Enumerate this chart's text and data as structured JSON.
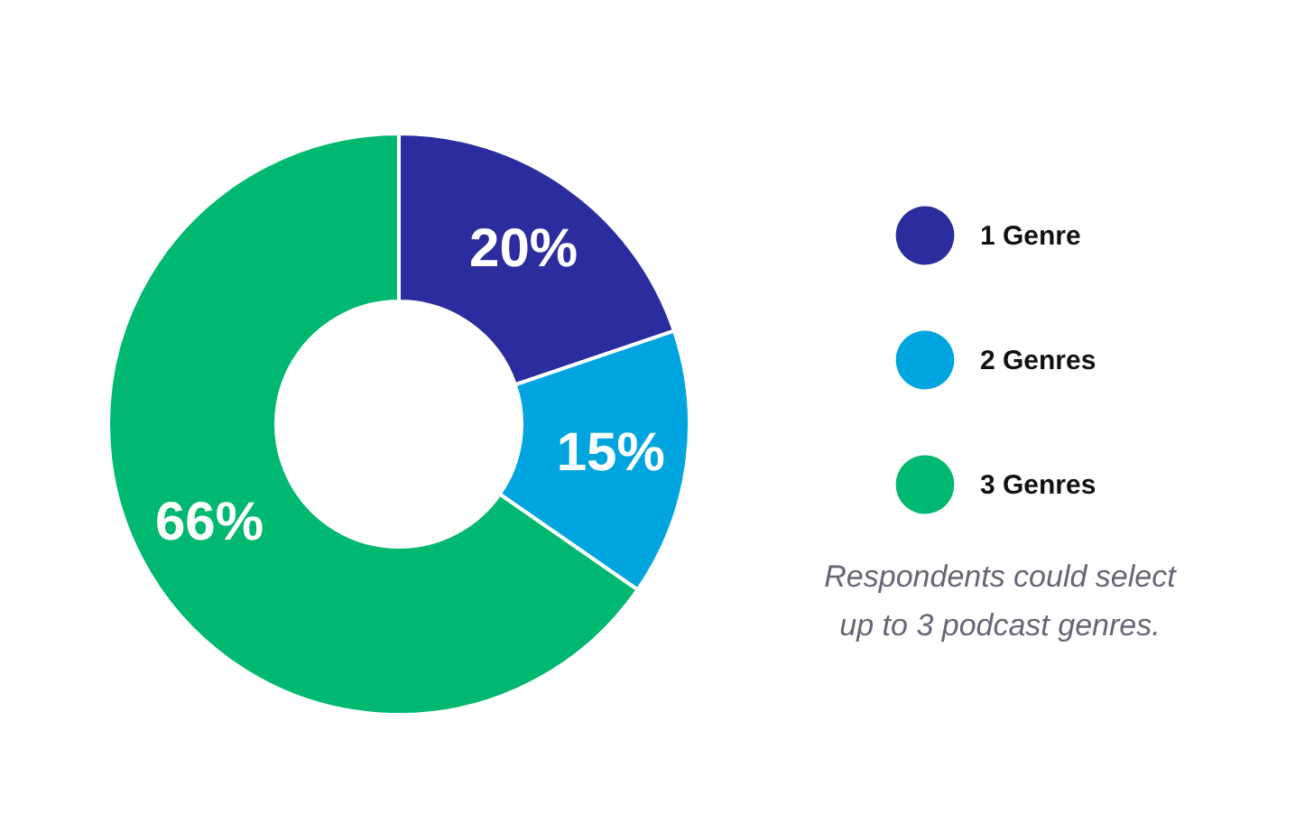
{
  "chart_data": {
    "type": "donut",
    "categories": [
      "1 Genre",
      "2 Genres",
      "3 Genres"
    ],
    "values": [
      20,
      15,
      66
    ],
    "colors": [
      "#2b2d9e",
      "#00a5e0",
      "#00b86f"
    ],
    "value_labels": [
      "20%",
      "15%",
      "66%"
    ],
    "legend": "right",
    "annotations": [
      "Respondents could select up to 3 podcast genres."
    ]
  }
}
